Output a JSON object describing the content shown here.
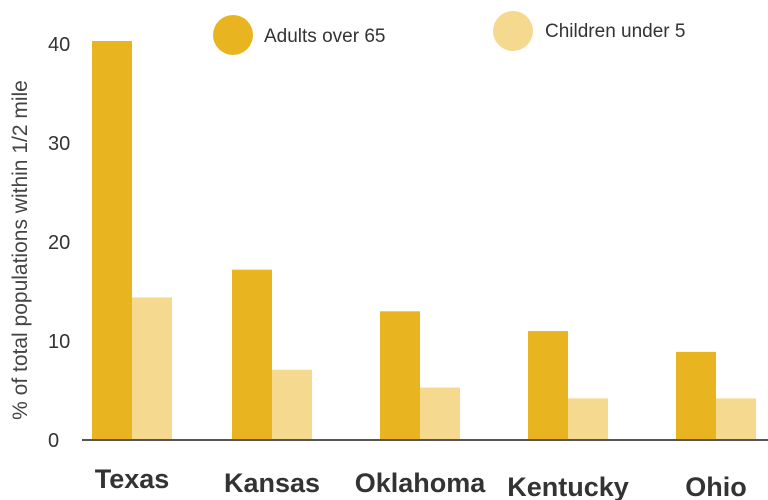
{
  "chart_data": {
    "type": "bar",
    "title": "",
    "xlabel": "",
    "ylabel": "% of total populations within 1/2 mile",
    "ylim": [
      0,
      42
    ],
    "yticks": [
      0,
      10,
      20,
      30,
      40
    ],
    "grid": false,
    "legend_placement": "top-center",
    "categories": [
      "Texas",
      "Kansas",
      "Oklahoma",
      "Kentucky",
      "Ohio"
    ],
    "series": [
      {
        "name": "Adults over 65",
        "color": "#E8B521",
        "values": [
          40.3,
          17.2,
          13.0,
          11.0,
          8.9
        ]
      },
      {
        "name": "Children under 5",
        "color": "#F4D98E",
        "values": [
          14.4,
          7.1,
          5.3,
          4.2,
          4.2
        ]
      }
    ]
  }
}
